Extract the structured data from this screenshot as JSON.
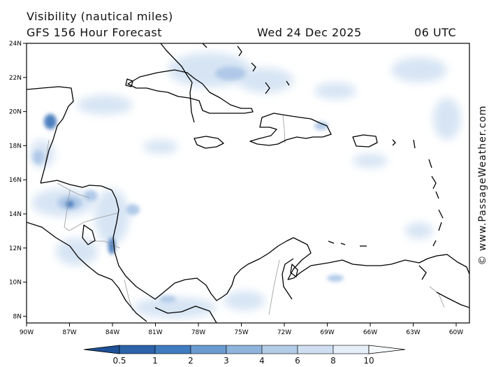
{
  "header": {
    "title": "Visibility (nautical miles)",
    "forecast": "GFS 156 Hour Forecast",
    "date": "Wed 24 Dec 2025",
    "time": "06 UTC"
  },
  "credit": "© www.PassageWeather.com",
  "axes": {
    "lon_labels": [
      "90W",
      "87W",
      "84W",
      "81W",
      "78W",
      "75W",
      "72W",
      "69W",
      "66W",
      "63W",
      "60W"
    ],
    "lat_labels": [
      "24N",
      "22N",
      "20N",
      "18N",
      "16N",
      "14N",
      "12N",
      "10N",
      "8N"
    ]
  },
  "colorbar": {
    "labels": [
      "0.5",
      "1",
      "2",
      "3",
      "4",
      "6",
      "8",
      "10"
    ],
    "colors": [
      "#2b62a8",
      "#3f7bbf",
      "#6a9bd0",
      "#8fb4dc",
      "#b3cce8",
      "#cfdff1",
      "#e6eef8",
      "#f7fafd"
    ]
  },
  "colors": {
    "coast": "#000000",
    "border": "#9a9a9a",
    "low_vis": "#2f66b0",
    "haze": "#c9dbf0"
  }
}
